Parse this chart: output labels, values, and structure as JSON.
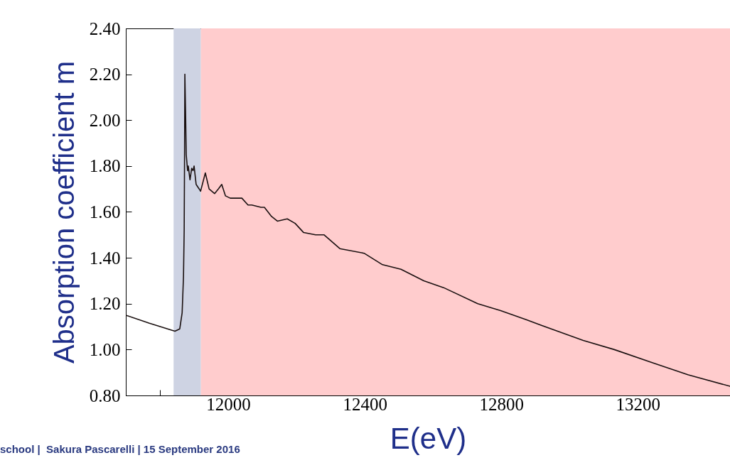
{
  "chart_data": {
    "type": "line",
    "xlabel": "E(eV)",
    "ylabel": "Absorption coefficient m",
    "annotations": [
      "school |  Sakura Pascarelli | 15 September 2016"
    ],
    "xlim": [
      11700,
      13470
    ],
    "ylim": [
      0.8,
      2.4
    ],
    "xticks": [
      {
        "value": 11800,
        "label": null
      },
      {
        "value": 11900,
        "label": null
      },
      12000,
      {
        "value": 12100,
        "label": null
      },
      {
        "value": 12200,
        "label": null
      },
      {
        "value": 12300,
        "label": null
      },
      12400,
      {
        "value": 12500,
        "label": null
      },
      {
        "value": 12600,
        "label": null
      },
      {
        "value": 12700,
        "label": null
      },
      12800,
      {
        "value": 12900,
        "label": null
      },
      {
        "value": 13000,
        "label": null
      },
      {
        "value": 13100,
        "label": null
      },
      13200,
      {
        "value": 13300,
        "label": null
      },
      {
        "value": 13400,
        "label": null
      }
    ],
    "yticks": [
      {
        "value": 0.8,
        "label": "0.80"
      },
      {
        "value": 1.0,
        "label": "1.00"
      },
      {
        "value": 1.2,
        "label": "1.20"
      },
      {
        "value": 1.4,
        "label": "1.40"
      },
      {
        "value": 1.6,
        "label": "1.60"
      },
      {
        "value": 1.8,
        "label": "1.80"
      },
      {
        "value": 2.0,
        "label": "2.00"
      },
      {
        "value": 2.2,
        "label": "2.20"
      },
      {
        "value": 2.4,
        "label": "2.40"
      }
    ],
    "grid": false,
    "line_style": "solid",
    "marker": "none",
    "bands": [
      {
        "axis": "x",
        "from": 11840,
        "to": 11920,
        "color": "#ced3e3"
      },
      {
        "axis": "x",
        "from": 11920,
        "to": 13470,
        "color": "#ffcccd"
      }
    ],
    "series": [
      {
        "color": "#1a1010",
        "x": [
          11700,
          11769,
          11844,
          11858,
          11865,
          11869,
          11871,
          11872,
          11873,
          11875,
          11877,
          11881,
          11883,
          11888,
          11893,
          11897,
          11900,
          11906,
          11915,
          11919,
          11933,
          11944,
          11960,
          11971,
          11981,
          11992,
          12006,
          12019,
          12040,
          12058,
          12069,
          12096,
          12106,
          12127,
          12144,
          12173,
          12196,
          12221,
          12256,
          12281,
          12327,
          12398,
          12452,
          12506,
          12573,
          12631,
          12731,
          12798,
          12873,
          12965,
          13040,
          13131,
          13248,
          13348,
          13470
        ],
        "values": [
          1.15,
          1.115,
          1.08,
          1.09,
          1.16,
          1.32,
          1.52,
          1.81,
          2.2,
          2.04,
          1.85,
          1.78,
          1.8,
          1.74,
          1.79,
          1.78,
          1.8,
          1.72,
          1.7,
          1.69,
          1.77,
          1.7,
          1.68,
          1.7,
          1.72,
          1.67,
          1.66,
          1.66,
          1.66,
          1.63,
          1.63,
          1.62,
          1.62,
          1.58,
          1.56,
          1.57,
          1.55,
          1.51,
          1.5,
          1.5,
          1.44,
          1.42,
          1.37,
          1.35,
          1.3,
          1.27,
          1.2,
          1.17,
          1.13,
          1.08,
          1.04,
          1.0,
          0.94,
          0.89,
          0.84
        ]
      }
    ]
  }
}
